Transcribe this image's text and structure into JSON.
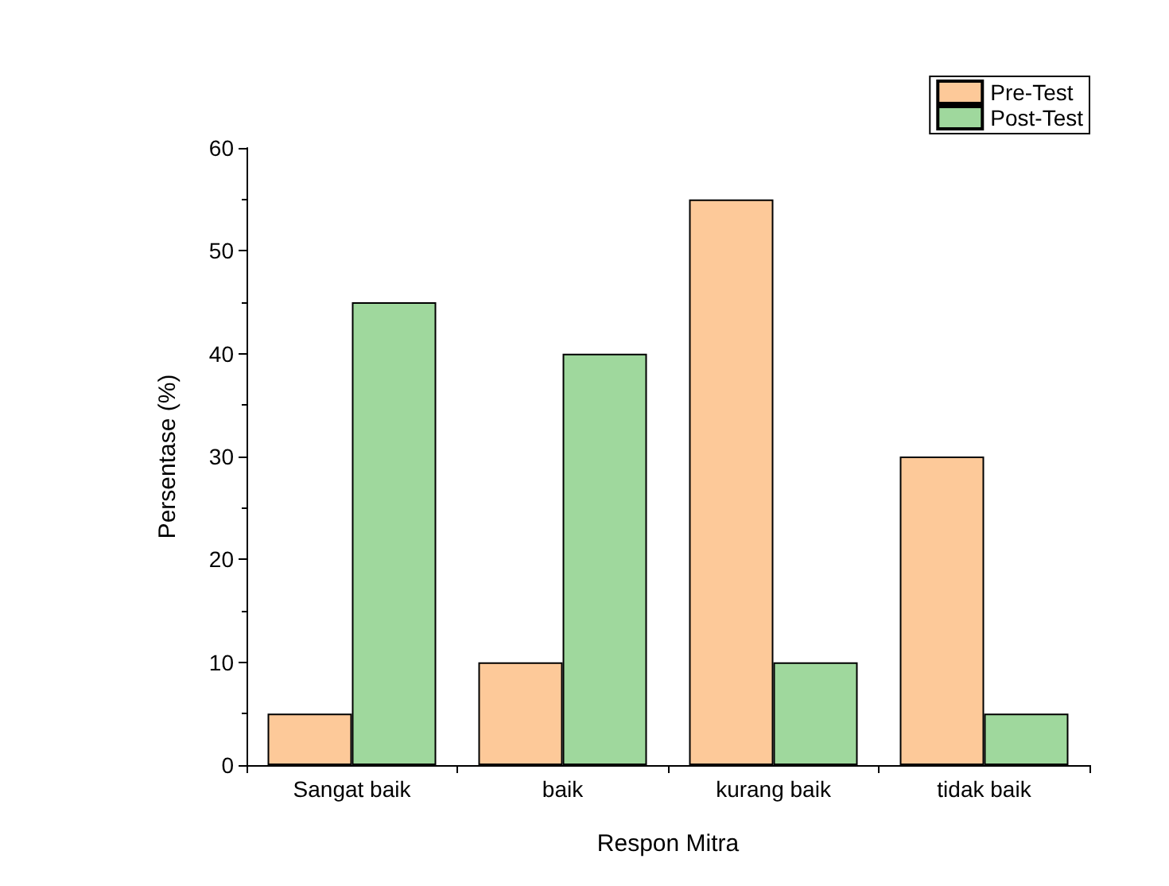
{
  "chart_data": {
    "type": "bar",
    "xlabel": "Respon Mitra",
    "ylabel": "Persentase (%)",
    "categories": [
      "Sangat baik",
      "baik",
      "kurang baik",
      "tidak baik"
    ],
    "series": [
      {
        "name": "Pre-Test",
        "color": "#fdc999",
        "values": [
          5,
          10,
          55,
          30
        ]
      },
      {
        "name": "Post-Test",
        "color": "#9fd89d",
        "values": [
          45,
          40,
          10,
          5
        ]
      }
    ],
    "ylim": [
      0,
      60
    ],
    "yticks": [
      0,
      10,
      20,
      30,
      40,
      50,
      60
    ],
    "grid": false,
    "legend": "top right"
  }
}
